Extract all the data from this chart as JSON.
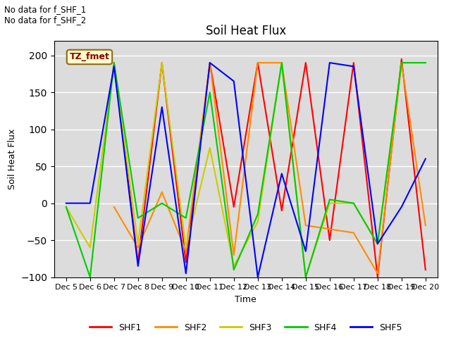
{
  "title": "Soil Heat Flux",
  "ylabel": "Soil Heat Flux",
  "xlabel": "Time",
  "annotations": [
    "No data for f_SHF_1",
    "No data for f_SHF_2"
  ],
  "box_label": "TZ_fmet",
  "ylim": [
    -100,
    220
  ],
  "yticks": [
    -100,
    -50,
    0,
    50,
    100,
    150,
    200
  ],
  "bg_color": "#dcdcdc",
  "plot_bg": "#f0f0f0",
  "legend": [
    "SHF1",
    "SHF2",
    "SHF3",
    "SHF4",
    "SHF5"
  ],
  "colors": {
    "SHF1": "#ff0000",
    "SHF2": "#ff8c00",
    "SHF3": "#cccc00",
    "SHF4": "#00cc00",
    "SHF5": "#0000ff"
  },
  "x_labels": [
    "Dec 5",
    "Dec 6",
    "Dec 7",
    "Dec 8",
    "Dec 9",
    "Dec 10",
    "Dec 11",
    "Dec 12",
    "Dec 13",
    "Dec 14",
    "Dec 15",
    "Dec 16",
    "Dec 17",
    "Dec 18",
    "Dec 19",
    "Dec 20"
  ],
  "x_values": [
    5,
    6,
    7,
    8,
    9,
    10,
    11,
    12,
    13,
    14,
    15,
    16,
    17,
    18,
    19,
    20
  ],
  "SHF1": [
    null,
    null,
    190,
    -80,
    190,
    -80,
    190,
    -5,
    190,
    -10,
    190,
    -50,
    190,
    -100,
    195,
    -90
  ],
  "SHF2": [
    null,
    null,
    -5,
    -60,
    15,
    -65,
    190,
    -70,
    190,
    190,
    -30,
    -35,
    -40,
    -95,
    190,
    -30
  ],
  "SHF3": [
    -5,
    -60,
    190,
    -55,
    190,
    -60,
    75,
    -85,
    -25,
    190,
    -100,
    0,
    0,
    -55,
    190,
    190
  ],
  "SHF4": [
    -5,
    -100,
    190,
    -20,
    0,
    -20,
    150,
    -90,
    -15,
    190,
    -100,
    5,
    0,
    -55,
    190,
    190
  ],
  "SHF5": [
    0,
    0,
    185,
    -85,
    130,
    -95,
    190,
    165,
    -100,
    40,
    -65,
    190,
    185,
    -55,
    -5,
    60
  ]
}
